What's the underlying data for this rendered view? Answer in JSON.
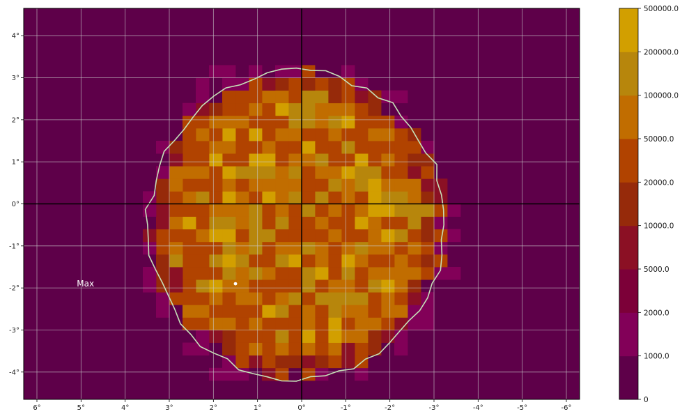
{
  "chart_data": {
    "type": "heatmap",
    "title": "",
    "xlabel": "",
    "ylabel": "",
    "xlim": [
      6.3,
      -6.3
    ],
    "ylim": [
      -4.65,
      4.65
    ],
    "grid": true,
    "x_axis_inverted": true,
    "x_ticks": [
      6,
      5,
      4,
      3,
      2,
      1,
      0,
      -1,
      -2,
      -3,
      -4,
      -5,
      -6
    ],
    "x_tick_labels": [
      "6°",
      "5°",
      "4°",
      "3°",
      "2°",
      "1°",
      "0°",
      "-1°",
      "-2°",
      "-3°",
      "-4°",
      "-5°",
      "-6°"
    ],
    "y_ticks": [
      4,
      3,
      2,
      1,
      0,
      -1,
      -2,
      -3,
      -4
    ],
    "y_tick_labels": [
      "4°",
      "3°",
      "2°",
      "1°",
      "0°",
      "-1°",
      "-2°",
      "-3°",
      "-4°"
    ],
    "crosshair": {
      "x": 0,
      "y": 0
    },
    "cell_size_deg": 0.3,
    "grid_x_range": [
      -3.6,
      3.6
    ],
    "grid_y_range": [
      -4.2,
      3.3
    ],
    "background_color": "#5e0049",
    "colorbar": {
      "bounds": [
        0,
        1000,
        2000,
        5000,
        10000,
        20000,
        50000,
        100000,
        200000,
        500000
      ],
      "labels": [
        "0",
        "1000.0",
        "2000.0",
        "5000.0",
        "10000.0",
        "20000.0",
        "50000.0",
        "100000.0",
        "200000.0",
        "500000.0"
      ],
      "colors": [
        "#5e0049",
        "#820058",
        "#7c0038",
        "#8b1024",
        "#962a0a",
        "#b14300",
        "#c16d00",
        "#b7860c",
        "#d29f00"
      ],
      "colors_are_bands_bottom_to_top": true
    },
    "region": {
      "contour_color": "#c6e0b8",
      "center_x": 0.12,
      "center_y": -0.5,
      "rx": 3.3,
      "ry": 3.6,
      "outer_band_deg": 0.45,
      "inner_level_weights": {
        "5": 0.38,
        "6": 0.28,
        "7": 0.2,
        "8": 0.14
      },
      "edge_levels": [
        3,
        4,
        5
      ]
    },
    "max_marker": {
      "x": 1.5,
      "y": -1.9,
      "color": "#ffffff"
    },
    "annotations": [
      {
        "text": "Max",
        "x": 4.9,
        "y": -1.9
      }
    ]
  }
}
